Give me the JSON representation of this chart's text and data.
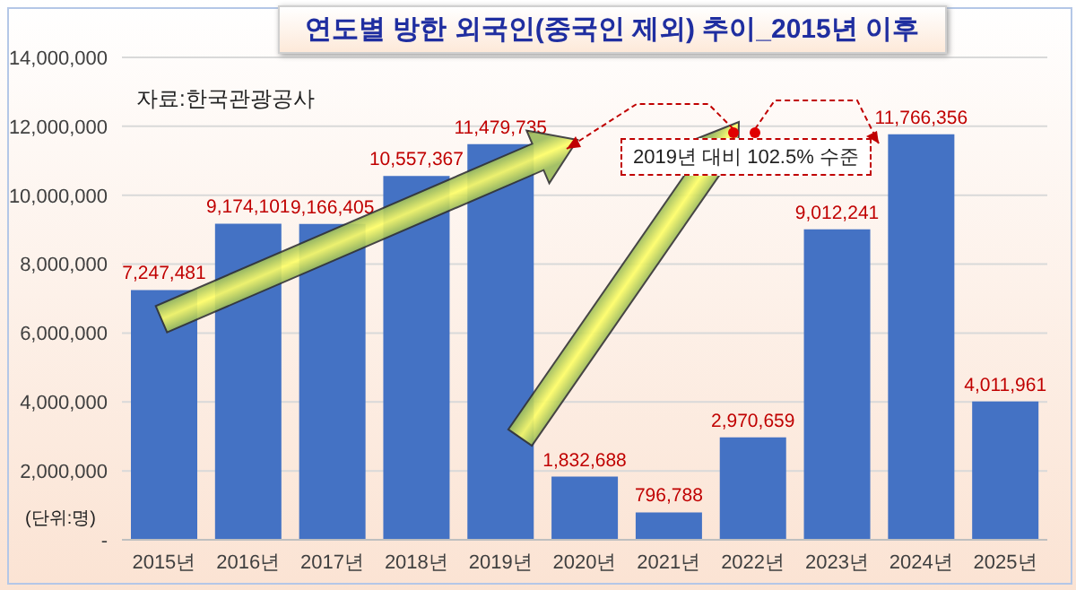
{
  "chart_data": {
    "type": "bar",
    "title": "연도별 방한 외국인(중국인 제외) 추이_2015년 이후",
    "categories": [
      "2015년",
      "2016년",
      "2017년",
      "2018년",
      "2019년",
      "2020년",
      "2021년",
      "2022년",
      "2023년",
      "2024년",
      "2025년"
    ],
    "values": [
      7247481,
      9174101,
      9166405,
      10557367,
      11479735,
      1832688,
      796788,
      2970659,
      9012241,
      11766356,
      4011961
    ],
    "color": "#4472c4",
    "value_labels": [
      "7,247,481",
      "9,174,101",
      "9,166,405",
      "10,557,367",
      "11,479,735",
      "1,832,688",
      "796,788",
      "2,970,659",
      "9,012,241",
      "11,766,356",
      "4,011,961"
    ],
    "ylim": [
      0,
      14000000
    ],
    "yticks": [
      {
        "value": 0,
        "label": "-"
      },
      {
        "value": 2000000,
        "label": "2,000,000"
      },
      {
        "value": 4000000,
        "label": "4,000,000"
      },
      {
        "value": 6000000,
        "label": "6,000,000"
      },
      {
        "value": 8000000,
        "label": "8,000,000"
      },
      {
        "value": 10000000,
        "label": "10,000,000"
      },
      {
        "value": 12000000,
        "label": "12,000,000"
      },
      {
        "value": 14000000,
        "label": "14,000,000"
      }
    ],
    "grid": "y",
    "legend": false,
    "annotations": [
      "자료:한국관광공사",
      "(단위:명)",
      "2019년 대비 102.5% 수준"
    ]
  }
}
